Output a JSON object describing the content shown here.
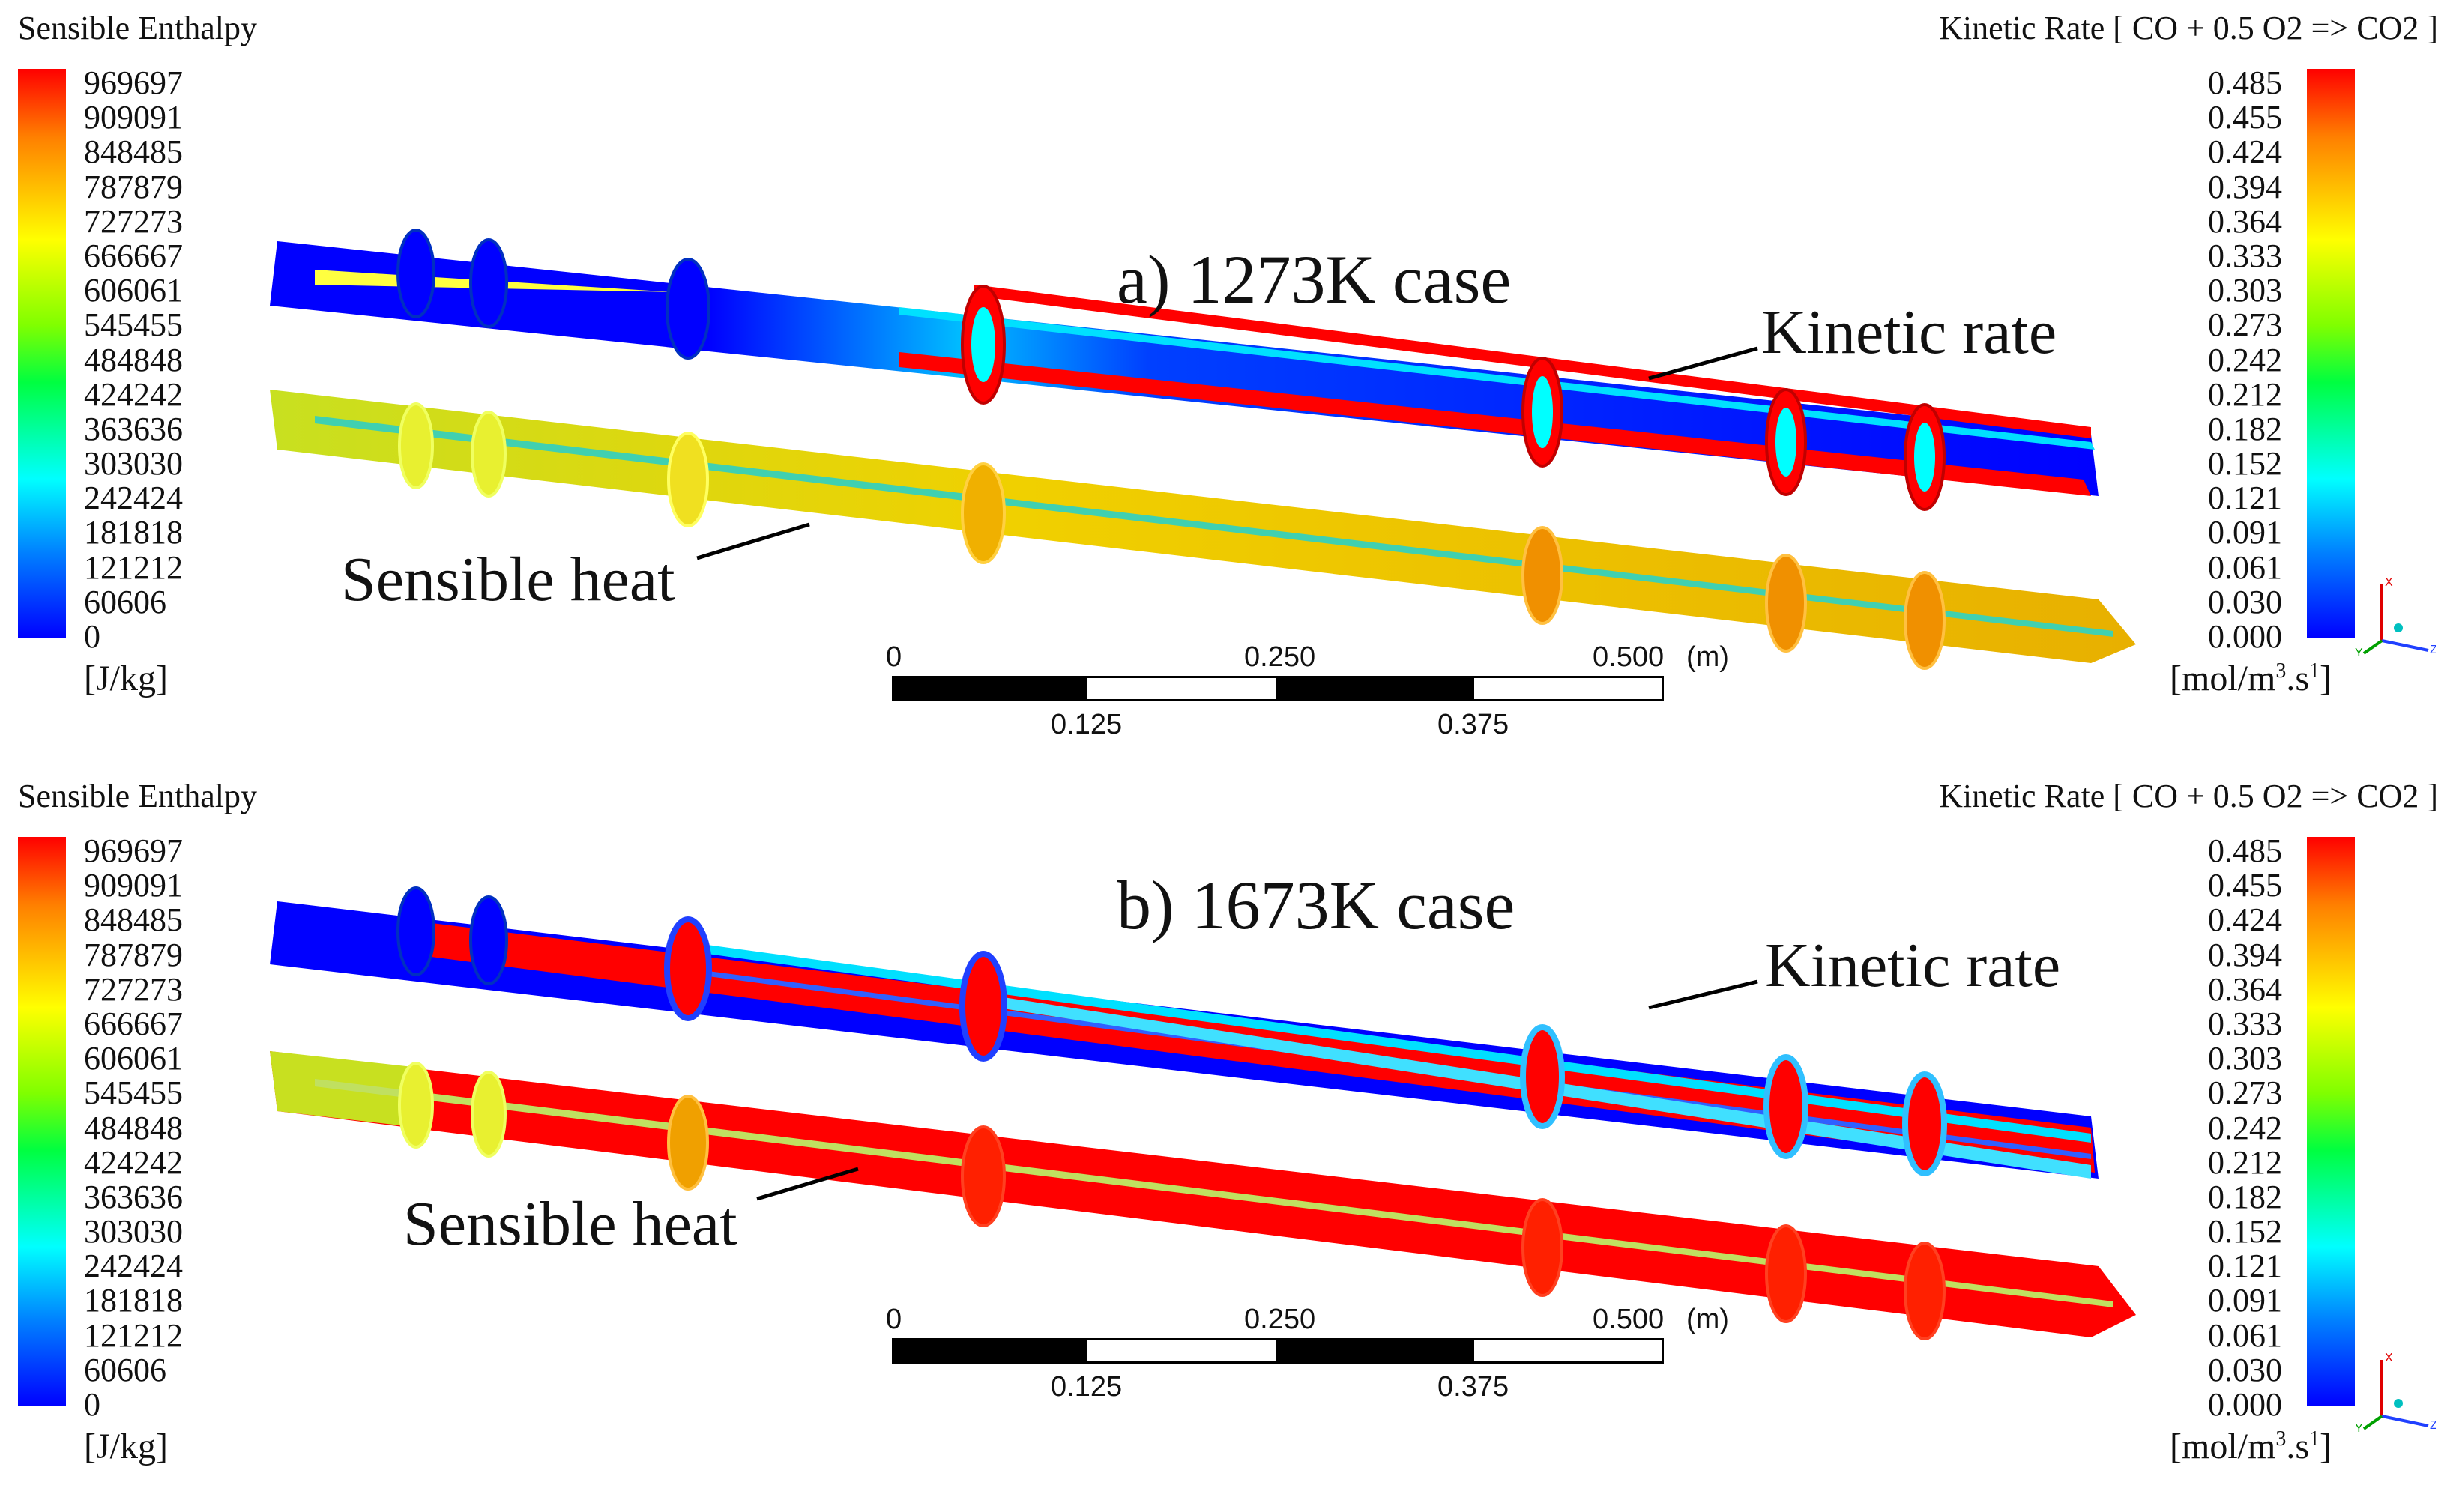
{
  "legend_left": {
    "title": "Sensible Enthalpy",
    "ticks": [
      "969697",
      "909091",
      "848485",
      "787879",
      "727273",
      "666667",
      "606061",
      "545455",
      "484848",
      "424242",
      "363636",
      "303030",
      "242424",
      "181818",
      "121212",
      "60606",
      "0"
    ],
    "unit": "[J/kg]"
  },
  "legend_right": {
    "title": "Kinetic Rate [ CO + 0.5 O2 => CO2 ]",
    "ticks": [
      "0.485",
      "0.455",
      "0.424",
      "0.394",
      "0.364",
      "0.333",
      "0.303",
      "0.273",
      "0.242",
      "0.212",
      "0.182",
      "0.152",
      "0.121",
      "0.091",
      "0.061",
      "0.030",
      "0.000"
    ],
    "unit_base": "[mol/m",
    "unit_sup1": "3",
    "unit_mid": ".s",
    "unit_sup2": "1",
    "unit_end": "]"
  },
  "scale_bar": {
    "top_labels": [
      "0",
      "0.250",
      "0.500"
    ],
    "unit": "(m)",
    "bottom_labels": [
      "0.125",
      "0.375"
    ]
  },
  "axis_triad": {
    "x": "X",
    "y": "Y",
    "z": "Z"
  },
  "colormap": [
    "#0000ff",
    "#0080ff",
    "#00ffff",
    "#00ff40",
    "#80ff00",
    "#ffff00",
    "#ff8000",
    "#ff0000"
  ],
  "panels": [
    {
      "title": "a) 1273K case",
      "kinetic_label": "Kinetic rate",
      "heat_label": "Sensible heat"
    },
    {
      "title": "b) 1673K case",
      "kinetic_label": "Kinetic rate",
      "heat_label": "Sensible heat"
    }
  ]
}
